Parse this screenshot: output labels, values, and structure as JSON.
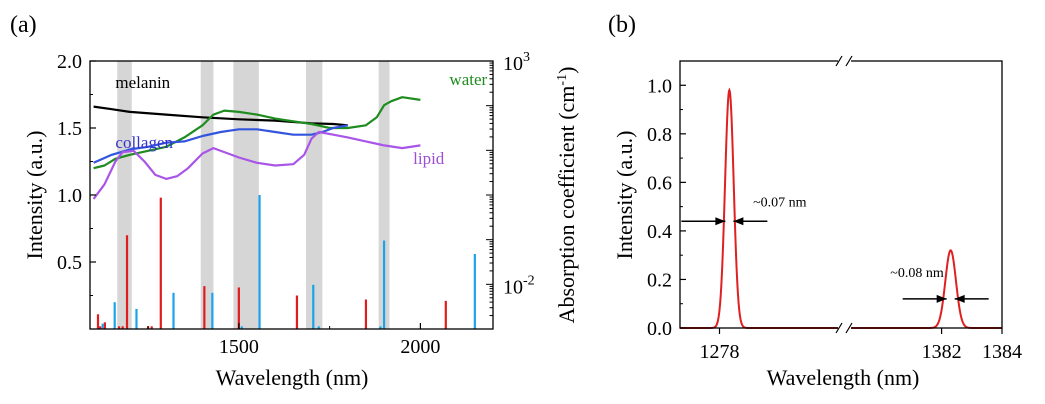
{
  "chart_data": [
    {
      "panel_label": "(a)",
      "type": "line",
      "xlabel": "Wavelength (nm)",
      "ylabel": "Intensity (a.u.)",
      "ylabel_right": "Absorption coefficient (cm",
      "ylabel_right_sup": "-1",
      "ylabel_right_close": ")",
      "xlim": [
        1090,
        2200
      ],
      "ylim": [
        0,
        2.0
      ],
      "x_ticks": [
        1500,
        2000
      ],
      "x_tick_labels": [
        "1500",
        "2000"
      ],
      "y_ticks": [
        0.5,
        1.0,
        1.5,
        2.0
      ],
      "y_tick_labels": [
        "0.5",
        "1.0",
        "1.5",
        "2.0"
      ],
      "right_axis": {
        "scale": "log",
        "ylim": [
          0.001,
          1000
        ],
        "tick_labels": [
          {
            "value": 1000,
            "base": "10",
            "exp": "3"
          },
          {
            "value": 0.01,
            "base": "10",
            "exp": "-2"
          }
        ]
      },
      "shaded_bands": [
        [
          1165,
          1205
        ],
        [
          1395,
          1430
        ],
        [
          1485,
          1555
        ],
        [
          1685,
          1730
        ],
        [
          1885,
          1915
        ]
      ],
      "series_labels": [
        {
          "name": "melanin",
          "x": 1160,
          "y": 1.8,
          "color": "#000000"
        },
        {
          "name": "water",
          "x": 2080,
          "y": 1.82,
          "color": "#1f8c1f"
        },
        {
          "name": "collagen",
          "x": 1160,
          "y": 1.35,
          "color": "#3333cc"
        },
        {
          "name": "lipid",
          "x": 1980,
          "y": 1.23,
          "color": "#9b4fd6"
        }
      ],
      "absorption_curves": [
        {
          "name": "melanin",
          "color": "#000000",
          "points": [
            [
              1100,
              1.66
            ],
            [
              1150,
              1.64
            ],
            [
              1200,
              1.62
            ],
            [
              1300,
              1.6
            ],
            [
              1400,
              1.58
            ],
            [
              1500,
              1.565
            ],
            [
              1600,
              1.555
            ],
            [
              1700,
              1.535
            ],
            [
              1760,
              1.53
            ],
            [
              1800,
              1.52
            ]
          ]
        },
        {
          "name": "water",
          "color": "#1f8c1f",
          "points": [
            [
              1100,
              1.2
            ],
            [
              1130,
              1.22
            ],
            [
              1160,
              1.27
            ],
            [
              1200,
              1.3
            ],
            [
              1250,
              1.33
            ],
            [
              1300,
              1.36
            ],
            [
              1350,
              1.43
            ],
            [
              1400,
              1.52
            ],
            [
              1430,
              1.6
            ],
            [
              1460,
              1.63
            ],
            [
              1500,
              1.62
            ],
            [
              1550,
              1.6
            ],
            [
              1600,
              1.57
            ],
            [
              1650,
              1.55
            ],
            [
              1700,
              1.53
            ],
            [
              1750,
              1.5
            ],
            [
              1800,
              1.5
            ],
            [
              1850,
              1.52
            ],
            [
              1880,
              1.58
            ],
            [
              1900,
              1.67
            ],
            [
              1920,
              1.7
            ],
            [
              1950,
              1.73
            ],
            [
              2000,
              1.71
            ]
          ]
        },
        {
          "name": "collagen",
          "color": "#3355dd",
          "points": [
            [
              1100,
              1.24
            ],
            [
              1150,
              1.3
            ],
            [
              1200,
              1.34
            ],
            [
              1250,
              1.36
            ],
            [
              1300,
              1.39
            ],
            [
              1350,
              1.4
            ],
            [
              1400,
              1.44
            ],
            [
              1450,
              1.47
            ],
            [
              1500,
              1.49
            ],
            [
              1550,
              1.49
            ],
            [
              1600,
              1.47
            ],
            [
              1650,
              1.45
            ],
            [
              1700,
              1.45
            ],
            [
              1730,
              1.47
            ],
            [
              1760,
              1.5
            ],
            [
              1800,
              1.52
            ]
          ]
        },
        {
          "name": "lipid",
          "color": "#a855e8",
          "points": [
            [
              1100,
              0.97
            ],
            [
              1130,
              1.08
            ],
            [
              1160,
              1.25
            ],
            [
              1180,
              1.32
            ],
            [
              1210,
              1.33
            ],
            [
              1240,
              1.25
            ],
            [
              1270,
              1.15
            ],
            [
              1300,
              1.12
            ],
            [
              1330,
              1.14
            ],
            [
              1360,
              1.2
            ],
            [
              1400,
              1.31
            ],
            [
              1430,
              1.35
            ],
            [
              1460,
              1.32
            ],
            [
              1500,
              1.28
            ],
            [
              1550,
              1.24
            ],
            [
              1600,
              1.22
            ],
            [
              1650,
              1.23
            ],
            [
              1680,
              1.3
            ],
            [
              1700,
              1.42
            ],
            [
              1720,
              1.47
            ],
            [
              1760,
              1.45
            ],
            [
              1800,
              1.43
            ],
            [
              1850,
              1.4
            ],
            [
              1900,
              1.37
            ],
            [
              1950,
              1.35
            ],
            [
              2000,
              1.37
            ]
          ]
        }
      ],
      "red_lines": [
        {
          "x": 1112,
          "h": 0.11
        },
        {
          "x": 1118,
          "h": 0.02
        },
        {
          "x": 1131,
          "h": 0.05
        },
        {
          "x": 1170,
          "h": 0.02
        },
        {
          "x": 1180,
          "h": 0.02
        },
        {
          "x": 1192,
          "h": 0.7
        },
        {
          "x": 1250,
          "h": 0.02
        },
        {
          "x": 1260,
          "h": 0.02
        },
        {
          "x": 1285,
          "h": 0.98
        },
        {
          "x": 1405,
          "h": 0.32
        },
        {
          "x": 1500,
          "h": 0.31
        },
        {
          "x": 1660,
          "h": 0.25
        },
        {
          "x": 1850,
          "h": 0.22
        },
        {
          "x": 2070,
          "h": 0.21
        }
      ],
      "blue_lines": [
        {
          "x": 1125,
          "h": 0.04
        },
        {
          "x": 1158,
          "h": 0.2
        },
        {
          "x": 1218,
          "h": 0.15
        },
        {
          "x": 1320,
          "h": 0.27
        },
        {
          "x": 1427,
          "h": 0.27
        },
        {
          "x": 1508,
          "h": 0.02
        },
        {
          "x": 1557,
          "h": 1.0
        },
        {
          "x": 1705,
          "h": 0.33
        },
        {
          "x": 1720,
          "h": 0.02
        },
        {
          "x": 1890,
          "h": 0.02
        },
        {
          "x": 1900,
          "h": 0.66
        },
        {
          "x": 2150,
          "h": 0.56
        }
      ]
    },
    {
      "panel_label": "(b)",
      "type": "line",
      "xlabel": "Wavelength (nm)",
      "ylabel": "Intensity (a.u.)",
      "ylim": [
        0,
        1.1
      ],
      "y_ticks": [
        0.0,
        0.2,
        0.4,
        0.6,
        0.8,
        1.0
      ],
      "y_tick_labels": [
        "0.0",
        "0.2",
        "0.4",
        "0.6",
        "0.8",
        "1.0"
      ],
      "broken_x_axis": true,
      "x_segments": [
        {
          "range": [
            1276,
            1284
          ],
          "ticks": [
            1278
          ],
          "tick_labels": [
            "1278"
          ]
        },
        {
          "range": [
            1379,
            1384
          ],
          "ticks": [
            1382,
            1384
          ],
          "tick_labels": [
            "1382",
            "1384"
          ]
        }
      ],
      "series": [
        {
          "name": "spectrum",
          "color": "#e02020",
          "peaks": [
            {
              "center": 1278.5,
              "height": 0.98,
              "fwhm": 0.07
            },
            {
              "center": 1382.3,
              "height": 0.32,
              "fwhm": 0.08
            }
          ]
        }
      ],
      "annotations": [
        {
          "text": "~0.07 nm",
          "x": 1279.7,
          "y": 0.5
        },
        {
          "text": "~0.08 nm",
          "x": 1380.3,
          "y": 0.21
        }
      ]
    }
  ]
}
